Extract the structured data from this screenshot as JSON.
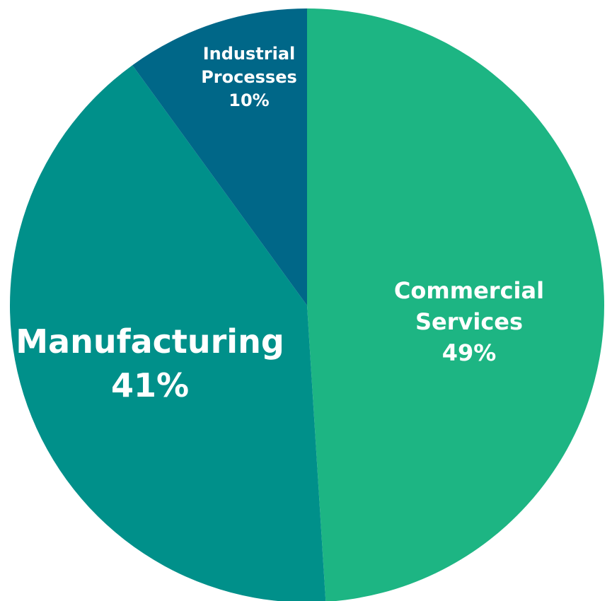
{
  "chart_data": {
    "type": "pie",
    "slices": [
      {
        "label_lines": [
          "Commercial",
          "Services"
        ],
        "value": 49,
        "value_label": "49%",
        "color": "#1db583"
      },
      {
        "label_lines": [
          "Manufacturing"
        ],
        "value": 41,
        "value_label": "41%",
        "color": "#00908a"
      },
      {
        "label_lines": [
          "Industrial",
          "Processes"
        ],
        "value": 10,
        "value_label": "10%",
        "color": "#006788"
      }
    ],
    "start": "top",
    "direction": "clockwise"
  }
}
